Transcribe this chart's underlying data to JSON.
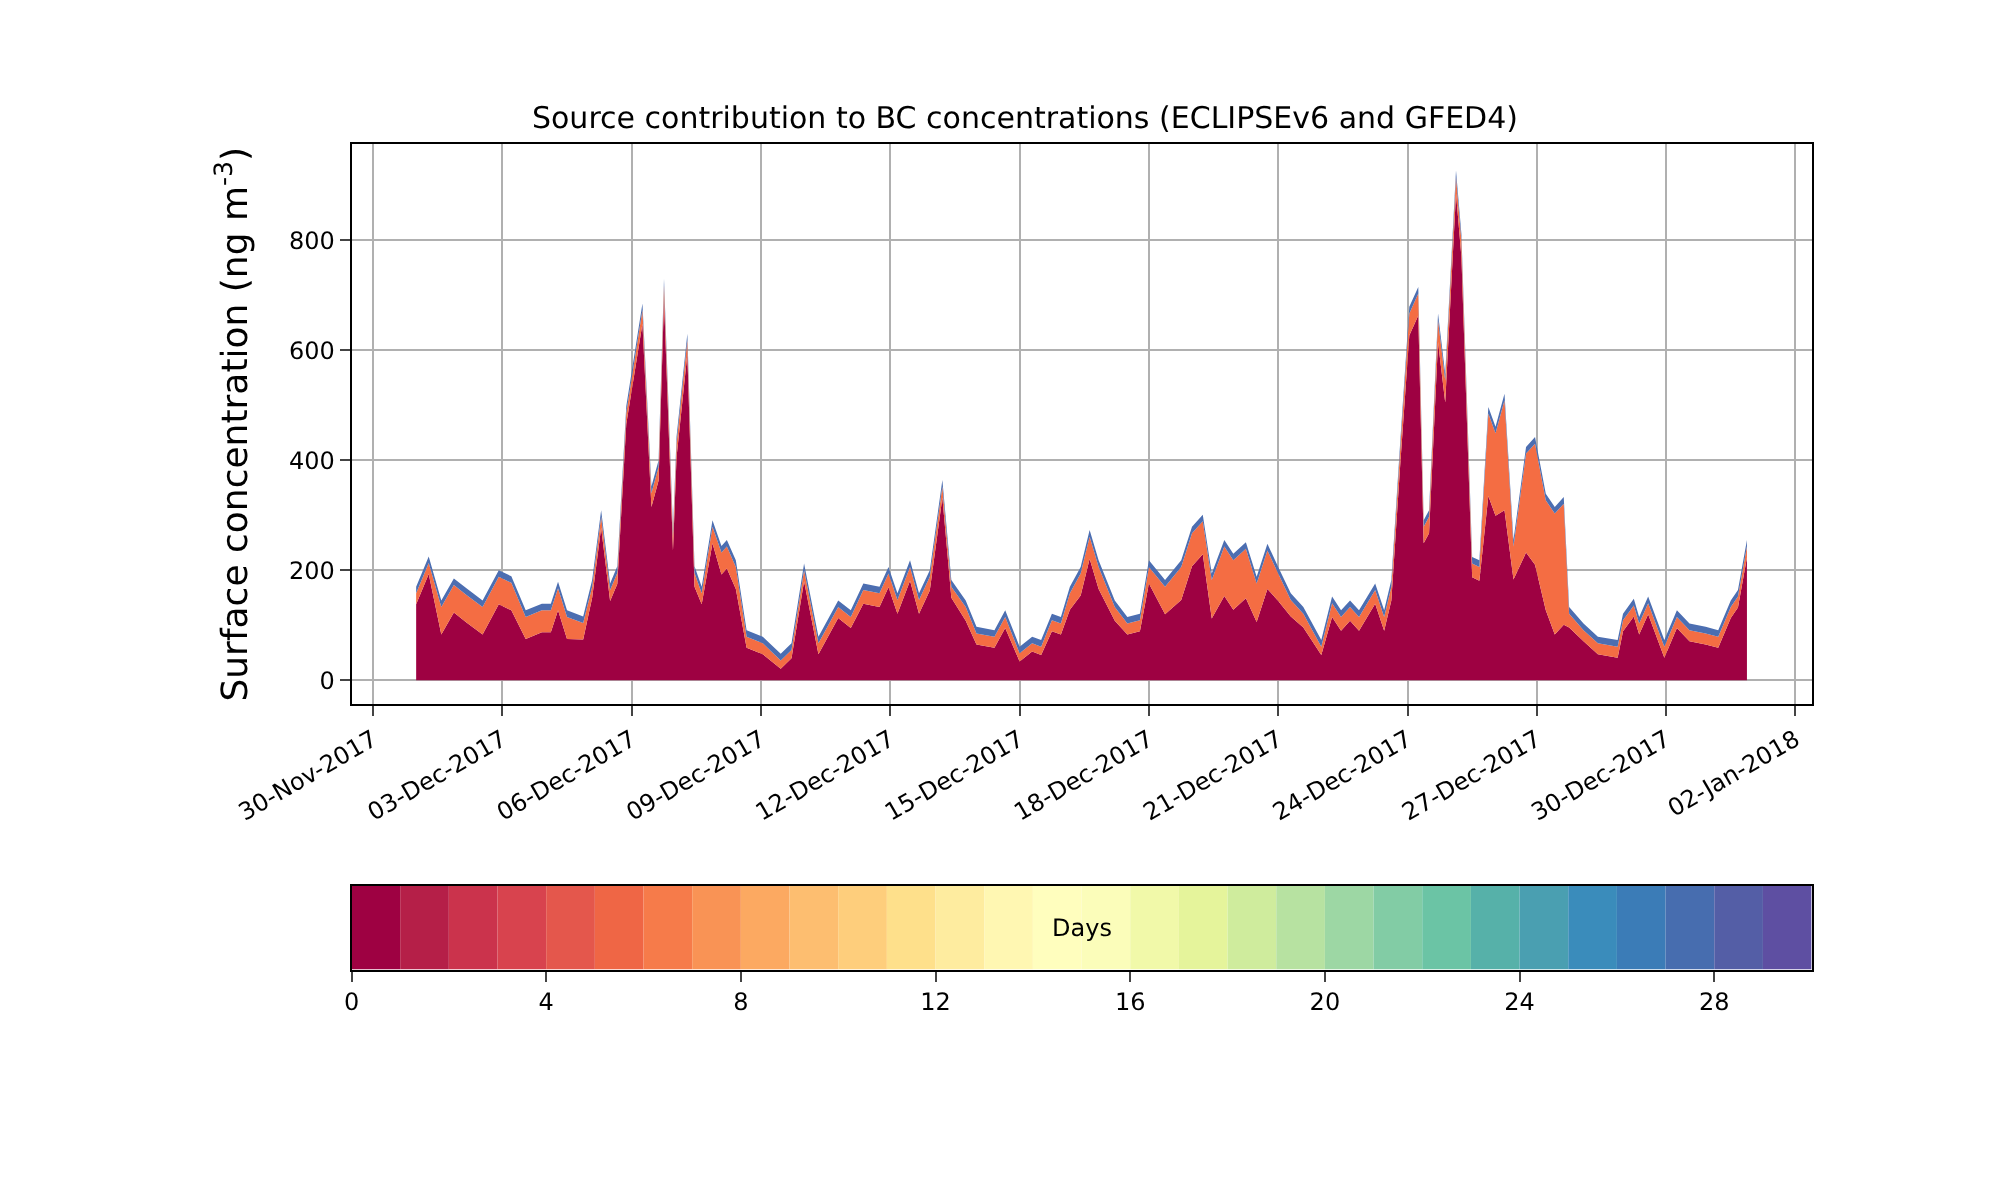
{
  "chart_data": {
    "type": "area",
    "stacked": true,
    "title": "Source contribution to BC concentrations (ECLIPSEv6 and GFED4)",
    "ylabel": "Surface concentration (ng m$^{-3}$)",
    "x": [
      "2017-12-01T00:00",
      "2017-12-01T07:00",
      "2017-12-01T14:00",
      "2017-12-01T21:00",
      "2017-12-02T04:00",
      "2017-12-02T13:00",
      "2017-12-02T22:00",
      "2017-12-03T05:00",
      "2017-12-03T13:00",
      "2017-12-03T22:00",
      "2017-12-04T03:00",
      "2017-12-04T07:00",
      "2017-12-04T12:00",
      "2017-12-04T21:00",
      "2017-12-05T02:00",
      "2017-12-05T07:00",
      "2017-12-05T12:00",
      "2017-12-05T16:00",
      "2017-12-05T21:00",
      "2017-12-06T06:00",
      "2017-12-06T11:00",
      "2017-12-06T15:00",
      "2017-12-06T18:00",
      "2017-12-06T23:00",
      "2017-12-07T01:00",
      "2017-12-07T07:00",
      "2017-12-07T11:00",
      "2017-12-07T15:00",
      "2017-12-07T21:00",
      "2017-12-08T02:00",
      "2017-12-08T05:00",
      "2017-12-08T10:00",
      "2017-12-08T16:00",
      "2017-12-09T01:00",
      "2017-12-09T11:00",
      "2017-12-09T17:00",
      "2017-12-10T00:00",
      "2017-12-10T08:00",
      "2017-12-10T19:00",
      "2017-12-11T02:00",
      "2017-12-11T09:00",
      "2017-12-11T18:00",
      "2017-12-11T23:00",
      "2017-12-12T04:00",
      "2017-12-12T11:00",
      "2017-12-12T16:00",
      "2017-12-12T22:00",
      "2017-12-13T05:00",
      "2017-12-13T10:00",
      "2017-12-13T18:00",
      "2017-12-14T00:00",
      "2017-12-14T10:00",
      "2017-12-14T16:00",
      "2017-12-15T00:00",
      "2017-12-15T07:00",
      "2017-12-15T12:00",
      "2017-12-15T18:00",
      "2017-12-15T23:00",
      "2017-12-16T04:00",
      "2017-12-16T10:00",
      "2017-12-16T15:00",
      "2017-12-16T20:00",
      "2017-12-17T05:00",
      "2017-12-17T12:00",
      "2017-12-17T19:00",
      "2017-12-18T00:00",
      "2017-12-18T09:00",
      "2017-12-18T18:00",
      "2017-12-19T00:00",
      "2017-12-19T06:00",
      "2017-12-19T11:00",
      "2017-12-19T18:00",
      "2017-12-19T23:00",
      "2017-12-20T06:00",
      "2017-12-20T12:00",
      "2017-12-20T18:00",
      "2017-12-21T00:00",
      "2017-12-21T07:00",
      "2017-12-21T14:00",
      "2017-12-22T00:00",
      "2017-12-22T06:00",
      "2017-12-22T11:00",
      "2017-12-22T16:00",
      "2017-12-22T21:00",
      "2017-12-23T06:00",
      "2017-12-23T11:00",
      "2017-12-23T15:00",
      "2017-12-23T20:00",
      "2017-12-24T01:00",
      "2017-12-24T06:00",
      "2017-12-24T09:00",
      "2017-12-24T12:00",
      "2017-12-24T17:00",
      "2017-12-24T21:00",
      "2017-12-25T03:00",
      "2017-12-25T06:00",
      "2017-12-25T12:00",
      "2017-12-25T16:00",
      "2017-12-25T21:00",
      "2017-12-26T01:00",
      "2017-12-26T06:00",
      "2017-12-26T11:00",
      "2017-12-26T18:00",
      "2017-12-26T23:00",
      "2017-12-27T05:00",
      "2017-12-27T10:00",
      "2017-12-27T15:00",
      "2017-12-27T18:00",
      "2017-12-28T02:00",
      "2017-12-28T10:00",
      "2017-12-28T21:00",
      "2017-12-29T00:00",
      "2017-12-29T06:00",
      "2017-12-29T09:00",
      "2017-12-29T14:00",
      "2017-12-29T23:00",
      "2017-12-30T06:00",
      "2017-12-30T13:00",
      "2017-12-30T22:00",
      "2017-12-31T05:00",
      "2017-12-31T12:00",
      "2017-12-31T16:00",
      "2017-12-31T21:00"
    ],
    "series": [
      {
        "color": "#9e0142",
        "values": [
          138,
          193,
          83,
          123,
          105,
          83,
          138,
          127,
          75,
          87,
          87,
          127,
          75,
          74,
          150,
          277,
          144,
          175,
          466,
          648,
          315,
          363,
          693,
          236,
          406,
          593,
          170,
          138,
          249,
          192,
          203,
          166,
          59,
          47,
          21,
          40,
          180,
          47,
          113,
          95,
          139,
          133,
          169,
          121,
          181,
          121,
          163,
          332,
          150,
          108,
          65,
          59,
          95,
          34,
          52,
          46,
          89,
          83,
          128,
          154,
          221,
          166,
          108,
          83,
          89,
          176,
          120,
          146,
          207,
          229,
          112,
          153,
          128,
          149,
          106,
          166,
          144,
          116,
          96,
          46,
          115,
          90,
          108,
          90,
          139,
          90,
          145,
          394,
          627,
          663,
          249,
          267,
          615,
          505,
          885,
          770,
          187,
          181,
          335,
          299,
          309,
          183,
          232,
          210,
          127,
          83,
          101,
          96,
          71,
          47,
          41,
          89,
          116,
          83,
          120,
          41,
          95,
          71,
          65,
          59,
          113,
          132,
          223
        ]
      },
      {
        "color": "#f46d43",
        "values": [
          20,
          20,
          50,
          50,
          50,
          50,
          50,
          50,
          40,
          40,
          40,
          40,
          40,
          30,
          20,
          20,
          20,
          20,
          20,
          25,
          25,
          25,
          25,
          25,
          25,
          25,
          25,
          20,
          30,
          40,
          40,
          40,
          20,
          20,
          15,
          15,
          20,
          20,
          20,
          20,
          25,
          25,
          25,
          25,
          25,
          25,
          25,
          20,
          20,
          25,
          20,
          20,
          20,
          15,
          15,
          15,
          20,
          20,
          30,
          40,
          40,
          40,
          25,
          20,
          20,
          30,
          50,
          60,
          60,
          60,
          70,
          90,
          90,
          90,
          70,
          70,
          50,
          30,
          25,
          15,
          25,
          25,
          25,
          25,
          25,
          25,
          25,
          30,
          40,
          40,
          30,
          30,
          40,
          40,
          30,
          30,
          25,
          25,
          150,
          150,
          200,
          60,
          180,
          220,
          200,
          220,
          220,
          25,
          20,
          20,
          20,
          20,
          20,
          20,
          20,
          20,
          20,
          20,
          20,
          20,
          20,
          20,
          20
        ]
      },
      {
        "color": "#4c6eb1",
        "values": [
          12,
          12,
          12,
          12,
          12,
          12,
          12,
          12,
          12,
          12,
          12,
          12,
          12,
          12,
          12,
          12,
          12,
          12,
          12,
          12,
          12,
          12,
          12,
          12,
          12,
          12,
          12,
          12,
          12,
          12,
          12,
          12,
          12,
          12,
          12,
          12,
          12,
          12,
          12,
          12,
          12,
          12,
          12,
          12,
          12,
          12,
          12,
          12,
          12,
          12,
          12,
          12,
          12,
          12,
          12,
          12,
          12,
          12,
          12,
          12,
          12,
          12,
          12,
          12,
          12,
          12,
          12,
          12,
          12,
          12,
          12,
          12,
          12,
          12,
          12,
          12,
          12,
          12,
          12,
          12,
          12,
          12,
          12,
          12,
          12,
          12,
          12,
          12,
          12,
          12,
          12,
          12,
          12,
          12,
          12,
          12,
          12,
          12,
          12,
          12,
          12,
          12,
          12,
          12,
          12,
          12,
          12,
          12,
          12,
          12,
          12,
          12,
          12,
          12,
          12,
          12,
          12,
          12,
          12,
          12,
          12,
          12,
          12
        ]
      }
    ],
    "xlim": [
      "2017-11-29T12:00",
      "2018-01-02T09:00"
    ],
    "xticks": [
      {
        "value": "2017-11-30",
        "label": "30-Nov-2017"
      },
      {
        "value": "2017-12-03",
        "label": "03-Dec-2017"
      },
      {
        "value": "2017-12-06",
        "label": "06-Dec-2017"
      },
      {
        "value": "2017-12-09",
        "label": "09-Dec-2017"
      },
      {
        "value": "2017-12-12",
        "label": "12-Dec-2017"
      },
      {
        "value": "2017-12-15",
        "label": "15-Dec-2017"
      },
      {
        "value": "2017-12-18",
        "label": "18-Dec-2017"
      },
      {
        "value": "2017-12-21",
        "label": "21-Dec-2017"
      },
      {
        "value": "2017-12-24",
        "label": "24-Dec-2017"
      },
      {
        "value": "2017-12-27",
        "label": "27-Dec-2017"
      },
      {
        "value": "2017-12-30",
        "label": "30-Dec-2017"
      },
      {
        "value": "2018-01-02",
        "label": "02-Jan-2018"
      }
    ],
    "ylim": [
      -44,
      975
    ],
    "yticks": [
      0,
      200,
      400,
      600,
      800
    ],
    "grid": true,
    "clabel": "Days",
    "clim": [
      0,
      30
    ],
    "cticks": [
      0,
      4,
      8,
      12,
      16,
      20,
      24,
      28
    ],
    "colors": [
      "#9e0142",
      "#b51f48",
      "#cb334c",
      "#d8434e",
      "#e4574c",
      "#ef6645",
      "#f67b4a",
      "#f99355",
      "#fca961",
      "#fdbe70",
      "#fece7c",
      "#fee08b",
      "#feec9f",
      "#fff7b2",
      "#fffebe",
      "#fbfdba",
      "#f1f9a9",
      "#e5f49b",
      "#cfec9d",
      "#b7e2a1",
      "#9dd7a4",
      "#82cca5",
      "#6bc4a5",
      "#56b1a9",
      "#4a9fb1",
      "#3a8cbb",
      "#3b7cb7",
      "#476daf",
      "#545ea6",
      "#5e4fa2"
    ]
  }
}
